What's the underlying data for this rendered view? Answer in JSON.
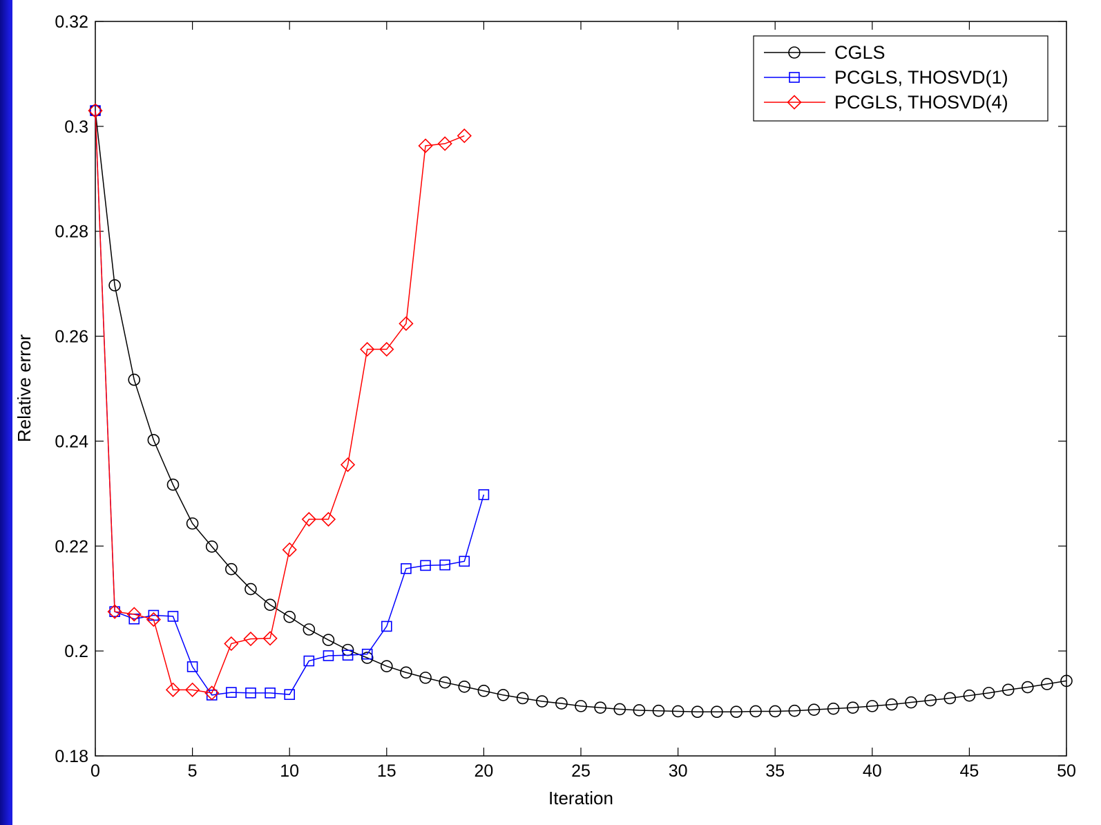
{
  "chart_data": {
    "type": "line",
    "title": "",
    "xlabel": "Iteration",
    "ylabel": "Relative error",
    "xlim": [
      0,
      50
    ],
    "ylim": [
      0.18,
      0.32
    ],
    "xticks": [
      "0",
      "5",
      "10",
      "15",
      "20",
      "25",
      "30",
      "35",
      "40",
      "45",
      "50"
    ],
    "yticks": [
      "0.18",
      "0.2",
      "0.22",
      "0.24",
      "0.26",
      "0.28",
      "0.3",
      "0.32"
    ],
    "grid": false,
    "legend_position": "top-right",
    "series": [
      {
        "name": "CGLS",
        "color": "#000000",
        "marker": "circle",
        "x": [
          0,
          1,
          2,
          3,
          4,
          5,
          6,
          7,
          8,
          9,
          10,
          11,
          12,
          13,
          14,
          15,
          16,
          17,
          18,
          19,
          20,
          21,
          22,
          23,
          24,
          25,
          26,
          27,
          28,
          29,
          30,
          31,
          32,
          33,
          34,
          35,
          36,
          37,
          38,
          39,
          40,
          41,
          42,
          43,
          44,
          45,
          46,
          47,
          48,
          49,
          50
        ],
        "values": [
          0.303,
          0.2697,
          0.2517,
          0.2402,
          0.2317,
          0.2243,
          0.2199,
          0.2156,
          0.2118,
          0.2088,
          0.2065,
          0.2041,
          0.2021,
          0.2002,
          0.1987,
          0.1971,
          0.1959,
          0.1949,
          0.194,
          0.1932,
          0.1924,
          0.1916,
          0.191,
          0.1904,
          0.19,
          0.1895,
          0.1892,
          0.1889,
          0.1887,
          0.1886,
          0.1885,
          0.1884,
          0.1884,
          0.1884,
          0.1885,
          0.1885,
          0.1886,
          0.1888,
          0.189,
          0.1892,
          0.1895,
          0.1898,
          0.1902,
          0.1906,
          0.191,
          0.1915,
          0.192,
          0.1926,
          0.1931,
          0.1937,
          0.1943
        ]
      },
      {
        "name": "PCGLS, THOSVD(1)",
        "color": "#0000ff",
        "marker": "square",
        "x": [
          0,
          1,
          2,
          3,
          4,
          5,
          6,
          7,
          8,
          9,
          10,
          11,
          12,
          13,
          14,
          15,
          16,
          17,
          18,
          19,
          20
        ],
        "values": [
          0.303,
          0.2075,
          0.2061,
          0.2068,
          0.2066,
          0.197,
          0.1916,
          0.1921,
          0.192,
          0.192,
          0.1917,
          0.1981,
          0.1991,
          0.1992,
          0.1994,
          0.2047,
          0.2157,
          0.2163,
          0.2164,
          0.2171,
          0.2298
        ]
      },
      {
        "name": "PCGLS, THOSVD(4)",
        "color": "#ff0000",
        "marker": "diamond",
        "x": [
          0,
          1,
          2,
          3,
          4,
          5,
          6,
          7,
          8,
          9,
          10,
          11,
          12,
          13,
          14,
          15,
          16,
          17,
          18,
          19
        ],
        "values": [
          0.303,
          0.2075,
          0.207,
          0.206,
          0.1926,
          0.1926,
          0.192,
          0.2014,
          0.2023,
          0.2024,
          0.2193,
          0.2251,
          0.2251,
          0.2355,
          0.2575,
          0.2575,
          0.2624,
          0.2963,
          0.2967,
          0.2982
        ]
      }
    ]
  }
}
